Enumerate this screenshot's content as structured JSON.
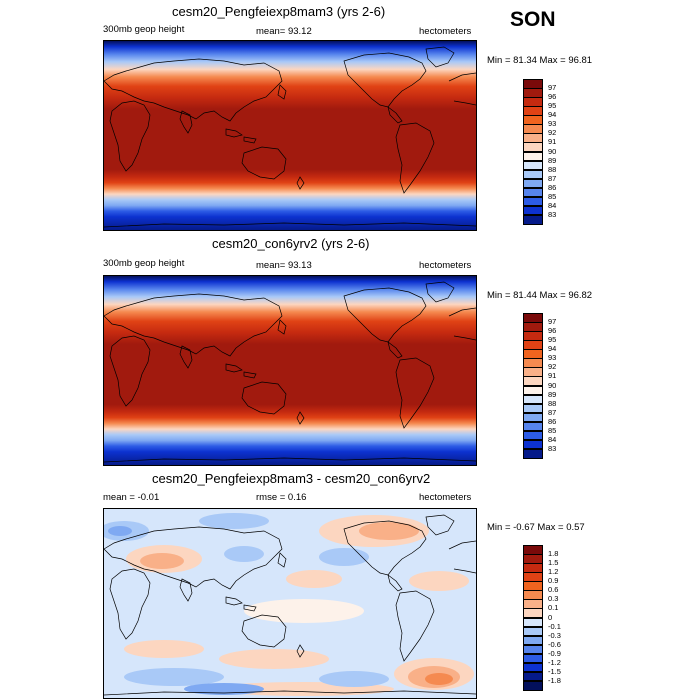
{
  "season": "SON",
  "panels": [
    {
      "title": "cesm20_Pengfeiexp8mam3 (yrs 2-6)",
      "left_label": "300mb geop height",
      "center_label": "mean=  93.12",
      "right_label": "hectometers",
      "minmax": "Min =  81.34 Max =  96.81"
    },
    {
      "title": "cesm20_con6yrv2 (yrs 2-6)",
      "left_label": "300mb geop height",
      "center_label": "mean=  93.13",
      "right_label": "hectometers",
      "minmax": "Min =  81.44 Max =  96.82"
    },
    {
      "title": "cesm20_Pengfeiexp8mam3 - cesm20_con6yrv2",
      "left_label": "mean =  -0.01",
      "center_label": "rmse =  0.16",
      "right_label": "hectometers",
      "minmax": "Min =  -0.67 Max =   0.57"
    }
  ],
  "colorbars": {
    "field": {
      "labels": [
        "97",
        "96",
        "95",
        "94",
        "93",
        "92",
        "91",
        "90",
        "89",
        "88",
        "87",
        "86",
        "85",
        "84",
        "83"
      ],
      "colors": [
        "#7a0a0a",
        "#a11a0e",
        "#c52a10",
        "#e04215",
        "#f0641f",
        "#f58a50",
        "#f9b088",
        "#fcd6c0",
        "#fdf2ea",
        "#d6e6fb",
        "#a9c9f7",
        "#7fa9f2",
        "#5684ed",
        "#2d5ce6",
        "#0d32d0",
        "#051a8a"
      ]
    },
    "diff": {
      "labels": [
        "1.8",
        "1.5",
        "1.2",
        "0.9",
        "0.6",
        "0.3",
        "0.1",
        "0",
        "-0.1",
        "-0.3",
        "-0.6",
        "-0.9",
        "-1.2",
        "-1.5",
        "-1.8"
      ],
      "colors": [
        "#7a0a0a",
        "#a11a0e",
        "#c52a10",
        "#e04215",
        "#f0641f",
        "#f58a50",
        "#f9b088",
        "#fcd6c0",
        "#d6e6fb",
        "#a9c9f7",
        "#7fa9f2",
        "#5684ed",
        "#2d5ce6",
        "#0d32d0",
        "#051a8a",
        "#03105c"
      ]
    }
  }
}
